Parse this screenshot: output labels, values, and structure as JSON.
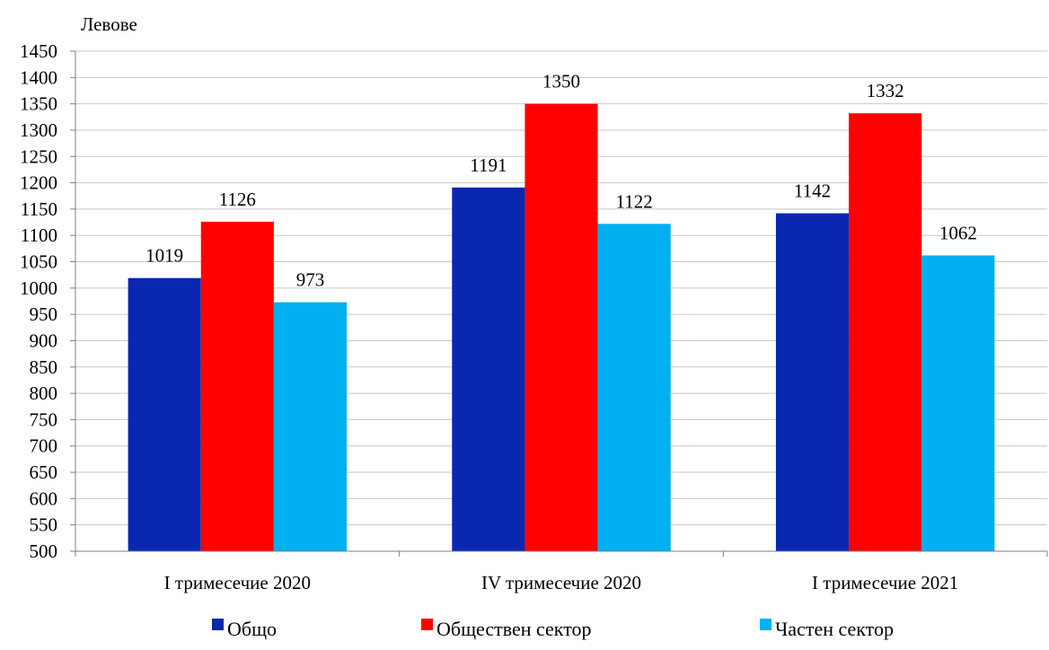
{
  "chart_data": {
    "type": "bar",
    "unit_label": "Левове",
    "categories": [
      "I тримесечие 2020",
      "IV тримесечие 2020",
      "I тримесечие 2021"
    ],
    "series": [
      {
        "name": "Общо",
        "values": [
          1019,
          1191,
          1142
        ],
        "color": "#0A27B0"
      },
      {
        "name": "Обществен сектор",
        "values": [
          1126,
          1350,
          1332
        ],
        "color": "#FF0000"
      },
      {
        "name": "Частен сектор",
        "values": [
          973,
          1122,
          1062
        ],
        "color": "#00B0F0"
      }
    ],
    "ylim": [
      500,
      1450
    ],
    "y_ticks": [
      500,
      550,
      600,
      650,
      700,
      750,
      800,
      850,
      900,
      950,
      1000,
      1050,
      1100,
      1150,
      1200,
      1250,
      1300,
      1350,
      1400,
      1450
    ],
    "grid": true,
    "legend_position": "bottom",
    "axis_color": "#808080",
    "grid_color": "#C8C8C8"
  }
}
